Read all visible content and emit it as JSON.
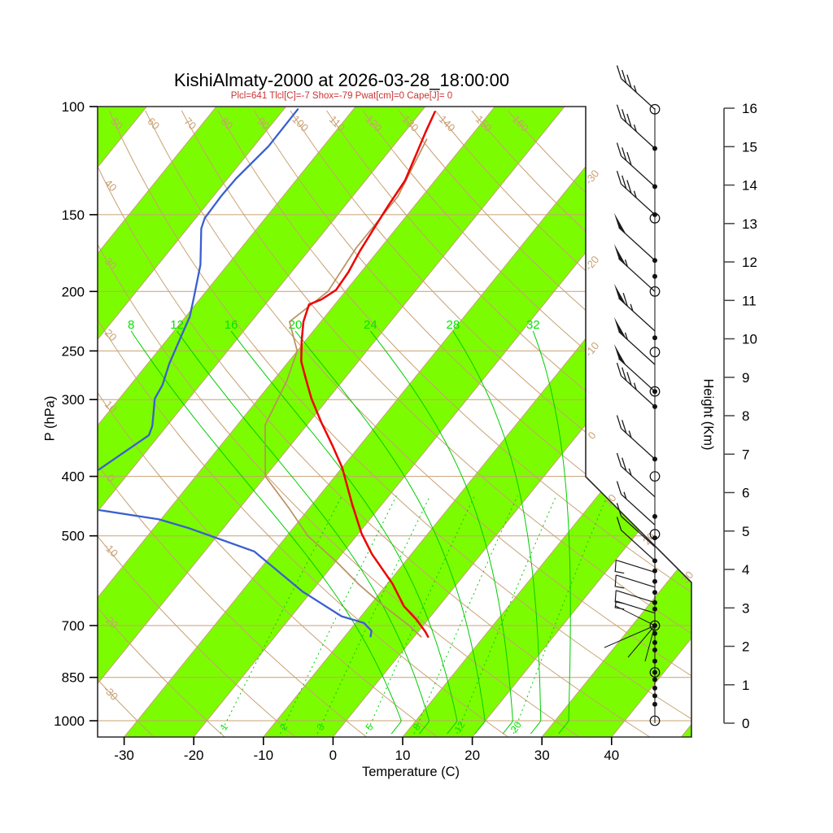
{
  "title": "KishiAlmaty-2000 at 2026-03-28_18:00:00",
  "subtitle": "Plcl=641 Tlcl[C]=-7 Shox=-79 Pwat[cm]=0 Cape[J]= 0",
  "chart_data": {
    "type": "line",
    "subtype": "skew-t-log-p-sounding",
    "title": "KishiAlmaty-2000 at 2026-03-28_18:00:00",
    "subtitle": "Plcl=641 Tlcl[C]=-7 Shox=-79 Pwat[cm]=0 Cape[J]= 0",
    "xlabel": "Temperature (C)",
    "ylabel_left": "P (hPa)",
    "ylabel_right": "Height (Km)",
    "x_ticks_c": [
      -30,
      -20,
      -10,
      0,
      10,
      20,
      30,
      40
    ],
    "pressure_ticks_hpa": [
      100,
      150,
      200,
      250,
      300,
      400,
      500,
      700,
      850,
      1000
    ],
    "height_ticks_km": [
      0,
      1,
      2,
      3,
      4,
      5,
      6,
      7,
      8,
      9,
      10,
      11,
      12,
      13,
      14,
      15,
      16
    ],
    "pressure_range_hpa": [
      100,
      1050
    ],
    "grid": true,
    "legend": "none",
    "dry_adiabats_c": [
      -30,
      -20,
      -10,
      0,
      10,
      20,
      30,
      40,
      50,
      60,
      70,
      80,
      90,
      100,
      110,
      120,
      130,
      140,
      150,
      160
    ],
    "isotherm_labels_right_c": [
      -30,
      -20,
      -10,
      0,
      10,
      20,
      30
    ],
    "isotherm_step_c": 10,
    "moist_adiabat_labels_c": [
      8,
      12,
      16,
      20,
      24,
      28,
      32
    ],
    "mixing_ratio_labels_gkg": [
      1,
      2,
      3,
      5,
      8,
      12,
      20
    ],
    "colors": {
      "stripe_green": "#7CFC00",
      "tan_lines": "#C8A173",
      "green_lines": "#00CD00",
      "temperature_red": "#EE0000",
      "dewpoint_blue": "#3A5FCF",
      "parcel_tan": "#B89060",
      "subtitle_red": "#CC3333",
      "axis_dark": "#2B2B2B"
    },
    "series": [
      {
        "name": "temperature",
        "color": "#EE0000",
        "points_p_t": [
          [
            102,
            -58
          ],
          [
            110,
            -57
          ],
          [
            120,
            -55.7
          ],
          [
            132,
            -54.3
          ],
          [
            145,
            -53.8
          ],
          [
            158,
            -53.2
          ],
          [
            172,
            -52.6
          ],
          [
            186,
            -51.8
          ],
          [
            199,
            -51.5
          ],
          [
            206,
            -52.5
          ],
          [
            210,
            -53.7
          ],
          [
            224,
            -52.5
          ],
          [
            241,
            -50.5
          ],
          [
            260,
            -48.2
          ],
          [
            277,
            -45.6
          ],
          [
            299,
            -42.4
          ],
          [
            327,
            -38.2
          ],
          [
            356,
            -34
          ],
          [
            387,
            -30
          ],
          [
            444,
            -24.3
          ],
          [
            495,
            -19.6
          ],
          [
            535,
            -15.7
          ],
          [
            598,
            -9.3
          ],
          [
            651,
            -5
          ],
          [
            685,
            -1.6
          ],
          [
            716,
            1
          ],
          [
            730,
            2
          ]
        ]
      },
      {
        "name": "dewpoint",
        "color": "#3A5FCF",
        "segments_p_t": [
          [
            [
              101,
              -78
            ],
            [
              116,
              -77.9
            ],
            [
              131,
              -78.8
            ],
            [
              140,
              -78.9
            ],
            [
              152,
              -78.7
            ],
            [
              158,
              -78
            ],
            [
              181,
              -73.9
            ],
            [
              205,
              -71
            ],
            [
              220,
              -69.4
            ],
            [
              236,
              -68.4
            ],
            [
              262,
              -66.9
            ],
            [
              284,
              -65.4
            ],
            [
              299,
              -64.9
            ],
            [
              331,
              -62.1
            ],
            [
              343,
              -61.5
            ],
            [
              390,
              -64.7
            ]
          ],
          [
            [
              454,
              -59.9
            ],
            [
              470,
              -50.3
            ],
            [
              486,
              -44.9
            ],
            [
              530,
              -32.9
            ],
            [
              616,
              -21.3
            ],
            [
              676,
              -12.8
            ],
            [
              693,
              -8.8
            ],
            [
              714,
              -6.8
            ],
            [
              729,
              -6.3
            ]
          ]
        ]
      },
      {
        "name": "parcel",
        "color": "#B89060",
        "points_p_t": [
          [
            113,
            -56
          ],
          [
            140,
            -53.5
          ],
          [
            170,
            -53.5
          ],
          [
            200,
            -52.5
          ],
          [
            224,
            -54.5
          ],
          [
            250,
            -50
          ],
          [
            280,
            -48
          ],
          [
            330,
            -46
          ],
          [
            400,
            -40
          ],
          [
            450,
            -33
          ],
          [
            500,
            -27
          ],
          [
            550,
            -20
          ],
          [
            600,
            -14
          ],
          [
            650,
            -8
          ],
          [
            700,
            -2
          ],
          [
            730,
            1
          ]
        ]
      }
    ],
    "wind_barbs": [
      {
        "p": 101,
        "flag": 0,
        "full": 3,
        "half": 1,
        "style": "up"
      },
      {
        "p": 117,
        "flag": 0,
        "full": 3,
        "half": 1,
        "style": "up"
      },
      {
        "p": 135,
        "flag": 0,
        "full": 3,
        "half": 0,
        "style": "up"
      },
      {
        "p": 150,
        "flag": 0,
        "full": 3,
        "half": 1,
        "style": "up"
      },
      {
        "p": 178,
        "flag": 1,
        "full": 0,
        "half": 0,
        "style": "up"
      },
      {
        "p": 200,
        "flag": 1,
        "full": 0,
        "half": 1,
        "style": "up"
      },
      {
        "p": 232,
        "flag": 1,
        "full": 1,
        "half": 1,
        "style": "up"
      },
      {
        "p": 263,
        "flag": 1,
        "full": 0,
        "half": 1,
        "style": "up"
      },
      {
        "p": 291,
        "flag": 1,
        "full": 0,
        "half": 0,
        "style": "up"
      },
      {
        "p": 308,
        "flag": 0,
        "full": 3,
        "half": 1,
        "style": "up"
      },
      {
        "p": 375,
        "flag": 0,
        "full": 2,
        "half": 1,
        "style": "up"
      },
      {
        "p": 432,
        "flag": 0,
        "full": 2,
        "half": 1,
        "style": "up"
      },
      {
        "p": 480,
        "flag": 0,
        "full": 1,
        "half": 1,
        "style": "up"
      },
      {
        "p": 521,
        "flag": 0,
        "full": 1,
        "half": 0,
        "style": "up"
      },
      {
        "p": 549,
        "flag": 0,
        "full": 1,
        "half": 0,
        "style": "up"
      },
      {
        "p": 573,
        "flag": 0,
        "full": 1,
        "half": 0,
        "style": "low"
      },
      {
        "p": 606,
        "flag": 0,
        "full": 1,
        "half": 0,
        "style": "low"
      },
      {
        "p": 642,
        "flag": 0,
        "full": 1,
        "half": 0,
        "style": "low"
      },
      {
        "p": 668,
        "flag": 0,
        "full": 0,
        "half": 1,
        "style": "low"
      },
      {
        "p": 700,
        "flag": 0,
        "full": 0,
        "half": 0,
        "style": "star"
      }
    ],
    "staff_markers": [
      [
        101,
        "c"
      ],
      [
        117,
        "d"
      ],
      [
        135,
        "d"
      ],
      [
        150,
        "d"
      ],
      [
        152,
        "c"
      ],
      [
        178,
        "d"
      ],
      [
        189,
        "d"
      ],
      [
        200,
        "c"
      ],
      [
        238,
        "d"
      ],
      [
        251,
        "c"
      ],
      [
        291,
        "cd"
      ],
      [
        308,
        "d"
      ],
      [
        375,
        "d"
      ],
      [
        400,
        "c"
      ],
      [
        465,
        "d"
      ],
      [
        497,
        "c"
      ],
      [
        504,
        "d"
      ],
      [
        549,
        "d"
      ],
      [
        570,
        "d"
      ],
      [
        593,
        "d"
      ],
      [
        618,
        "d"
      ],
      [
        642,
        "d"
      ],
      [
        658,
        "d"
      ],
      [
        700,
        "cd"
      ],
      [
        721,
        "d"
      ],
      [
        746,
        "d"
      ],
      [
        767,
        "d"
      ],
      [
        800,
        "d"
      ],
      [
        834,
        "cd"
      ],
      [
        857,
        "d"
      ],
      [
        885,
        "d"
      ],
      [
        911,
        "d"
      ],
      [
        940,
        "d"
      ],
      [
        1000,
        "c"
      ]
    ]
  }
}
